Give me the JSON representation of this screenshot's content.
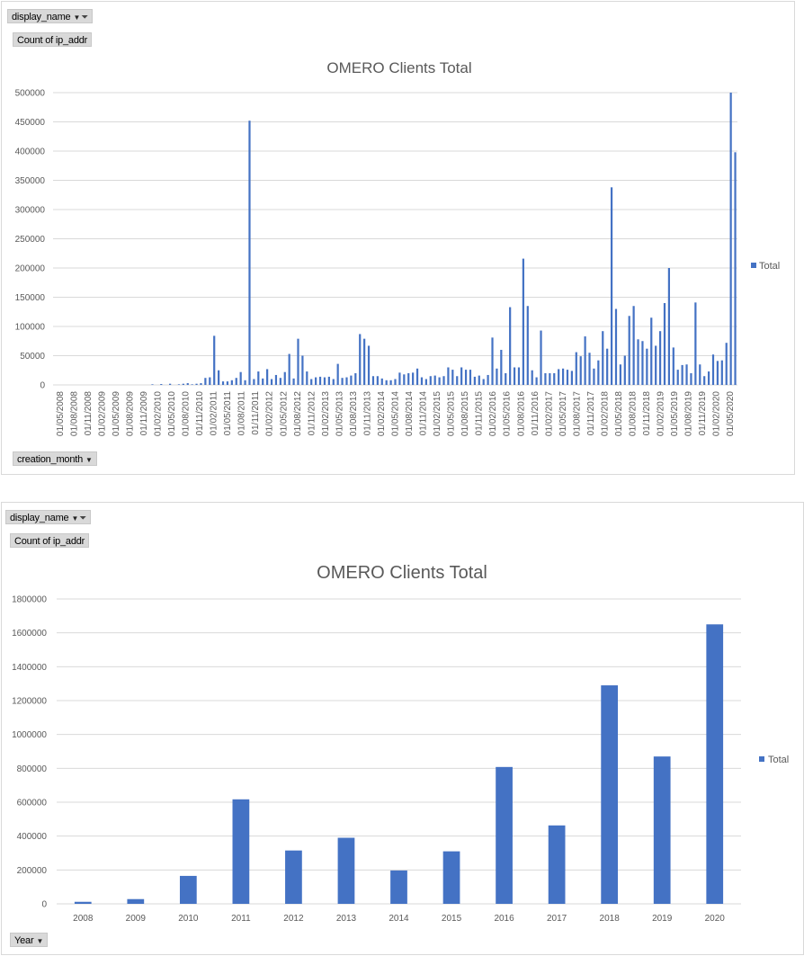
{
  "colors": {
    "series": "#4472C4",
    "grid": "#d9d9d9",
    "text": "#595959"
  },
  "chart_data": [
    {
      "type": "bar",
      "title": "OMERO Clients Total",
      "filter_button": "display_name",
      "value_label": "Count of ip_addr",
      "axis_button": "creation_month",
      "legend_position": "right",
      "grid": true,
      "ylim": [
        0,
        500000
      ],
      "yticks": [
        "0",
        "50000",
        "100000",
        "150000",
        "200000",
        "250000",
        "300000",
        "350000",
        "400000",
        "450000",
        "500000"
      ],
      "xtick_labels": [
        "01/05/2008",
        "01/08/2008",
        "01/11/2008",
        "01/02/2009",
        "01/05/2009",
        "01/08/2009",
        "01/11/2009",
        "01/02/2010",
        "01/05/2010",
        "01/08/2010",
        "01/11/2010",
        "01/02/2011",
        "01/05/2011",
        "01/08/2011",
        "01/11/2011",
        "01/02/2012",
        "01/05/2012",
        "01/08/2012",
        "01/11/2012",
        "01/02/2013",
        "01/05/2013",
        "01/08/2013",
        "01/11/2013",
        "01/02/2014",
        "01/05/2014",
        "01/08/2014",
        "01/11/2014",
        "01/02/2015",
        "01/05/2015",
        "01/08/2015",
        "01/11/2015",
        "01/02/2016",
        "01/05/2016",
        "01/08/2016",
        "01/11/2016",
        "01/02/2017",
        "01/05/2017",
        "01/08/2017",
        "01/11/2017",
        "01/02/2018",
        "01/05/2018",
        "01/08/2018",
        "01/11/2018",
        "01/02/2019",
        "01/05/2019",
        "01/08/2019",
        "01/11/2019",
        "01/02/2020",
        "01/05/2020"
      ],
      "series": [
        {
          "name": "Total",
          "values": [
            0,
            0,
            0,
            0,
            0,
            0,
            0,
            0,
            0,
            0,
            0,
            0,
            0,
            0,
            0,
            0,
            0,
            0,
            0,
            0,
            0,
            0,
            1000,
            0,
            1500,
            0,
            2000,
            0,
            1000,
            2000,
            3000,
            1000,
            2000,
            3000,
            12000,
            13000,
            84000,
            25000,
            6000,
            6000,
            8000,
            12000,
            22000,
            8000,
            452000,
            10000,
            23000,
            11000,
            27000,
            10000,
            17000,
            12000,
            22000,
            53000,
            11000,
            79000,
            50000,
            23000,
            10000,
            13000,
            14000,
            13000,
            14000,
            10000,
            36000,
            12000,
            13000,
            16000,
            20000,
            87000,
            79000,
            67000,
            15000,
            15000,
            11000,
            8000,
            8000,
            10000,
            21000,
            18000,
            20000,
            21000,
            28000,
            13000,
            10000,
            15000,
            16000,
            13000,
            15000,
            30000,
            26000,
            15000,
            30000,
            26000,
            26000,
            14000,
            16000,
            10000,
            17000,
            81000,
            28000,
            60000,
            20000,
            133000,
            30000,
            30000,
            216000,
            135000,
            25000,
            13000,
            93000,
            20000,
            20000,
            20000,
            27000,
            28000,
            26000,
            24000,
            56000,
            49000,
            83000,
            55000,
            28000,
            42000,
            92000,
            62000,
            338000,
            130000,
            35000,
            50000,
            118000,
            135000,
            78000,
            75000,
            62000,
            115000,
            67000,
            92000,
            140000,
            200000,
            64000,
            26000,
            34000,
            35000,
            20000,
            141000,
            35000,
            15000,
            23000,
            52000,
            41000,
            42000,
            72000,
            500000,
            398000
          ]
        }
      ]
    },
    {
      "type": "bar",
      "title": "OMERO Clients Total",
      "filter_button": "display_name",
      "value_label": "Count of ip_addr",
      "axis_button": "Year",
      "legend_position": "right",
      "grid": true,
      "ylim": [
        0,
        1800000
      ],
      "yticks": [
        "0",
        "200000",
        "400000",
        "600000",
        "800000",
        "1000000",
        "1200000",
        "1400000",
        "1600000",
        "1800000"
      ],
      "categories": [
        "2008",
        "2009",
        "2010",
        "2011",
        "2012",
        "2013",
        "2014",
        "2015",
        "2016",
        "2017",
        "2018",
        "2019",
        "2020"
      ],
      "series": [
        {
          "name": "Total",
          "values": [
            12000,
            28000,
            165000,
            617000,
            315000,
            390000,
            197000,
            310000,
            808000,
            463000,
            1290000,
            870000,
            1650000
          ]
        }
      ]
    }
  ]
}
